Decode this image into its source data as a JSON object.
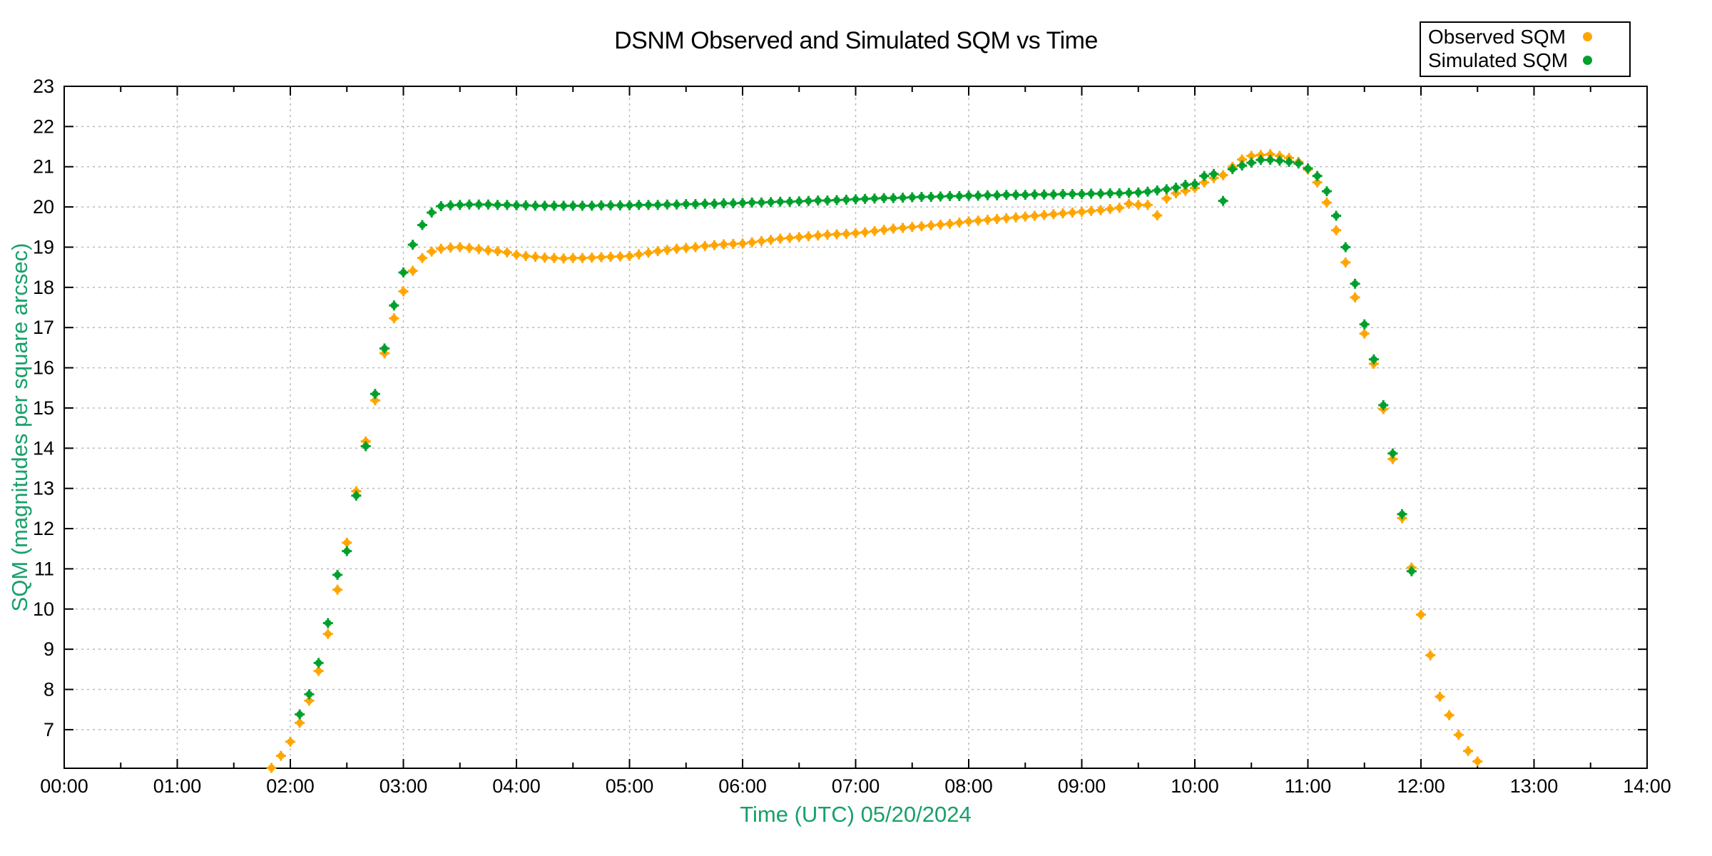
{
  "chart_data": {
    "type": "scatter",
    "title": "DSNM Observed and Simulated SQM vs Time",
    "xlabel": "Time (UTC)   05/20/2024",
    "ylabel": "SQM (magnitudes per square arcsec)",
    "xlim": [
      0,
      14
    ],
    "ylim": [
      6.04,
      23
    ],
    "grid": true,
    "legend_position": "top-right",
    "axis_color": "#000000",
    "label_color": "#18A06A",
    "grid_color": "#BBBBBB",
    "background_color": "#FFFFFF",
    "x_minor_tick_step": 0.5,
    "x_ticks": [
      {
        "v": 0,
        "label": "00:00"
      },
      {
        "v": 1,
        "label": "01:00"
      },
      {
        "v": 2,
        "label": "02:00"
      },
      {
        "v": 3,
        "label": "03:00"
      },
      {
        "v": 4,
        "label": "04:00"
      },
      {
        "v": 5,
        "label": "05:00"
      },
      {
        "v": 6,
        "label": "06:00"
      },
      {
        "v": 7,
        "label": "07:00"
      },
      {
        "v": 8,
        "label": "08:00"
      },
      {
        "v": 9,
        "label": "09:00"
      },
      {
        "v": 10,
        "label": "10:00"
      },
      {
        "v": 11,
        "label": "11:00"
      },
      {
        "v": 12,
        "label": "12:00"
      },
      {
        "v": 13,
        "label": "13:00"
      },
      {
        "v": 14,
        "label": "14:00"
      }
    ],
    "y_ticks": [
      7,
      8,
      9,
      10,
      11,
      12,
      13,
      14,
      15,
      16,
      17,
      18,
      19,
      20,
      21,
      22,
      23
    ],
    "series": [
      {
        "name": "Observed SQM",
        "color": "#FFA500",
        "marker": "filled-dot",
        "points": [
          [
            1.833,
            6.05
          ],
          [
            1.917,
            6.35
          ],
          [
            2.0,
            6.7
          ],
          [
            2.083,
            7.17
          ],
          [
            2.167,
            7.72
          ],
          [
            2.25,
            8.46
          ],
          [
            2.333,
            9.38
          ],
          [
            2.417,
            10.48
          ],
          [
            2.5,
            11.65
          ],
          [
            2.583,
            12.93
          ],
          [
            2.667,
            14.17
          ],
          [
            2.75,
            15.19
          ],
          [
            2.833,
            16.36
          ],
          [
            2.917,
            17.23
          ],
          [
            3.0,
            17.9
          ],
          [
            3.083,
            18.41
          ],
          [
            3.167,
            18.73
          ],
          [
            3.25,
            18.89
          ],
          [
            3.333,
            18.96
          ],
          [
            3.417,
            18.99
          ],
          [
            3.5,
            19.0
          ],
          [
            3.583,
            18.98
          ],
          [
            3.667,
            18.95
          ],
          [
            3.75,
            18.92
          ],
          [
            3.833,
            18.9
          ],
          [
            3.917,
            18.87
          ],
          [
            4.0,
            18.81
          ],
          [
            4.083,
            18.78
          ],
          [
            4.167,
            18.76
          ],
          [
            4.25,
            18.74
          ],
          [
            4.333,
            18.73
          ],
          [
            4.417,
            18.72
          ],
          [
            4.5,
            18.73
          ],
          [
            4.583,
            18.73
          ],
          [
            4.667,
            18.74
          ],
          [
            4.75,
            18.75
          ],
          [
            4.833,
            18.76
          ],
          [
            4.917,
            18.77
          ],
          [
            5.0,
            18.78
          ],
          [
            5.083,
            18.82
          ],
          [
            5.167,
            18.86
          ],
          [
            5.25,
            18.9
          ],
          [
            5.333,
            18.93
          ],
          [
            5.417,
            18.96
          ],
          [
            5.5,
            18.98
          ],
          [
            5.583,
            19.0
          ],
          [
            5.667,
            19.03
          ],
          [
            5.75,
            19.05
          ],
          [
            5.833,
            19.07
          ],
          [
            5.917,
            19.08
          ],
          [
            6.0,
            19.09
          ],
          [
            6.083,
            19.12
          ],
          [
            6.167,
            19.15
          ],
          [
            6.25,
            19.18
          ],
          [
            6.333,
            19.21
          ],
          [
            6.417,
            19.23
          ],
          [
            6.5,
            19.25
          ],
          [
            6.583,
            19.27
          ],
          [
            6.667,
            19.29
          ],
          [
            6.75,
            19.31
          ],
          [
            6.833,
            19.32
          ],
          [
            6.917,
            19.33
          ],
          [
            7.0,
            19.35
          ],
          [
            7.083,
            19.37
          ],
          [
            7.167,
            19.4
          ],
          [
            7.25,
            19.43
          ],
          [
            7.333,
            19.46
          ],
          [
            7.417,
            19.48
          ],
          [
            7.5,
            19.5
          ],
          [
            7.583,
            19.52
          ],
          [
            7.667,
            19.54
          ],
          [
            7.75,
            19.56
          ],
          [
            7.833,
            19.58
          ],
          [
            7.917,
            19.61
          ],
          [
            8.0,
            19.64
          ],
          [
            8.083,
            19.66
          ],
          [
            8.167,
            19.68
          ],
          [
            8.25,
            19.7
          ],
          [
            8.333,
            19.72
          ],
          [
            8.417,
            19.74
          ],
          [
            8.5,
            19.76
          ],
          [
            8.583,
            19.78
          ],
          [
            8.667,
            19.8
          ],
          [
            8.75,
            19.82
          ],
          [
            8.833,
            19.84
          ],
          [
            8.917,
            19.86
          ],
          [
            9.0,
            19.88
          ],
          [
            9.083,
            19.9
          ],
          [
            9.167,
            19.92
          ],
          [
            9.25,
            19.95
          ],
          [
            9.333,
            19.98
          ],
          [
            9.417,
            20.08
          ],
          [
            9.5,
            20.05
          ],
          [
            9.583,
            20.05
          ],
          [
            9.667,
            19.79
          ],
          [
            9.75,
            20.21
          ],
          [
            9.833,
            20.34
          ],
          [
            9.917,
            20.4
          ],
          [
            10.0,
            20.47
          ],
          [
            10.083,
            20.61
          ],
          [
            10.167,
            20.72
          ],
          [
            10.25,
            20.79
          ],
          [
            10.333,
            21.0
          ],
          [
            10.417,
            21.18
          ],
          [
            10.5,
            21.27
          ],
          [
            10.583,
            21.29
          ],
          [
            10.667,
            21.31
          ],
          [
            10.75,
            21.27
          ],
          [
            10.833,
            21.22
          ],
          [
            10.917,
            21.12
          ],
          [
            11.0,
            20.93
          ],
          [
            11.083,
            20.61
          ],
          [
            11.167,
            20.11
          ],
          [
            11.25,
            19.42
          ],
          [
            11.333,
            18.62
          ],
          [
            11.417,
            17.75
          ],
          [
            11.5,
            16.85
          ],
          [
            11.583,
            16.1
          ],
          [
            11.667,
            14.97
          ],
          [
            11.75,
            13.73
          ],
          [
            11.833,
            12.26
          ],
          [
            11.917,
            11.03
          ],
          [
            12.0,
            9.86
          ],
          [
            12.083,
            8.85
          ],
          [
            12.167,
            7.82
          ],
          [
            12.25,
            7.36
          ],
          [
            12.333,
            6.87
          ],
          [
            12.417,
            6.47
          ],
          [
            12.5,
            6.21
          ]
        ]
      },
      {
        "name": "Simulated SQM",
        "color": "#00A02D",
        "marker": "filled-dot",
        "points": [
          [
            2.083,
            7.38
          ],
          [
            2.167,
            7.88
          ],
          [
            2.25,
            8.66
          ],
          [
            2.333,
            9.65
          ],
          [
            2.417,
            10.85
          ],
          [
            2.5,
            11.44
          ],
          [
            2.583,
            12.82
          ],
          [
            2.667,
            14.05
          ],
          [
            2.75,
            15.35
          ],
          [
            2.833,
            16.48
          ],
          [
            2.917,
            17.55
          ],
          [
            3.0,
            18.37
          ],
          [
            3.083,
            19.06
          ],
          [
            3.167,
            19.55
          ],
          [
            3.25,
            19.86
          ],
          [
            3.333,
            20.02
          ],
          [
            3.417,
            20.04
          ],
          [
            3.5,
            20.05
          ],
          [
            3.583,
            20.06
          ],
          [
            3.667,
            20.06
          ],
          [
            3.75,
            20.06
          ],
          [
            3.833,
            20.05
          ],
          [
            3.917,
            20.05
          ],
          [
            4.0,
            20.04
          ],
          [
            4.083,
            20.04
          ],
          [
            4.167,
            20.03
          ],
          [
            4.25,
            20.03
          ],
          [
            4.333,
            20.03
          ],
          [
            4.417,
            20.03
          ],
          [
            4.5,
            20.03
          ],
          [
            4.583,
            20.03
          ],
          [
            4.667,
            20.03
          ],
          [
            4.75,
            20.04
          ],
          [
            4.833,
            20.04
          ],
          [
            4.917,
            20.04
          ],
          [
            5.0,
            20.04
          ],
          [
            5.083,
            20.05
          ],
          [
            5.167,
            20.05
          ],
          [
            5.25,
            20.05
          ],
          [
            5.333,
            20.06
          ],
          [
            5.417,
            20.06
          ],
          [
            5.5,
            20.07
          ],
          [
            5.583,
            20.07
          ],
          [
            5.667,
            20.08
          ],
          [
            5.75,
            20.08
          ],
          [
            5.833,
            20.09
          ],
          [
            5.917,
            20.09
          ],
          [
            6.0,
            20.1
          ],
          [
            6.083,
            20.11
          ],
          [
            6.167,
            20.11
          ],
          [
            6.25,
            20.12
          ],
          [
            6.333,
            20.13
          ],
          [
            6.417,
            20.13
          ],
          [
            6.5,
            20.14
          ],
          [
            6.583,
            20.15
          ],
          [
            6.667,
            20.16
          ],
          [
            6.75,
            20.16
          ],
          [
            6.833,
            20.17
          ],
          [
            6.917,
            20.18
          ],
          [
            7.0,
            20.19
          ],
          [
            7.083,
            20.2
          ],
          [
            7.167,
            20.21
          ],
          [
            7.25,
            20.22
          ],
          [
            7.333,
            20.22
          ],
          [
            7.417,
            20.23
          ],
          [
            7.5,
            20.24
          ],
          [
            7.583,
            20.25
          ],
          [
            7.667,
            20.25
          ],
          [
            7.75,
            20.26
          ],
          [
            7.833,
            20.27
          ],
          [
            7.917,
            20.27
          ],
          [
            8.0,
            20.28
          ],
          [
            8.083,
            20.28
          ],
          [
            8.167,
            20.29
          ],
          [
            8.25,
            20.29
          ],
          [
            8.333,
            20.3
          ],
          [
            8.417,
            20.3
          ],
          [
            8.5,
            20.3
          ],
          [
            8.583,
            20.31
          ],
          [
            8.667,
            20.31
          ],
          [
            8.75,
            20.31
          ],
          [
            8.833,
            20.32
          ],
          [
            8.917,
            20.32
          ],
          [
            9.0,
            20.32
          ],
          [
            9.083,
            20.33
          ],
          [
            9.167,
            20.33
          ],
          [
            9.25,
            20.34
          ],
          [
            9.333,
            20.34
          ],
          [
            9.417,
            20.35
          ],
          [
            9.5,
            20.36
          ],
          [
            9.583,
            20.38
          ],
          [
            9.667,
            20.41
          ],
          [
            9.75,
            20.44
          ],
          [
            9.833,
            20.48
          ],
          [
            9.917,
            20.55
          ],
          [
            10.0,
            20.57
          ],
          [
            10.083,
            20.77
          ],
          [
            10.167,
            20.82
          ],
          [
            10.25,
            20.15
          ],
          [
            10.333,
            20.94
          ],
          [
            10.417,
            21.03
          ],
          [
            10.5,
            21.1
          ],
          [
            10.583,
            21.17
          ],
          [
            10.667,
            21.17
          ],
          [
            10.75,
            21.15
          ],
          [
            10.833,
            21.12
          ],
          [
            10.917,
            21.08
          ],
          [
            11.0,
            20.96
          ],
          [
            11.083,
            20.77
          ],
          [
            11.167,
            20.39
          ],
          [
            11.25,
            19.78
          ],
          [
            11.333,
            19.0
          ],
          [
            11.417,
            18.09
          ],
          [
            11.5,
            17.08
          ],
          [
            11.583,
            16.21
          ],
          [
            11.667,
            15.07
          ],
          [
            11.75,
            13.87
          ],
          [
            11.833,
            12.36
          ],
          [
            11.917,
            10.94
          ]
        ]
      }
    ]
  },
  "legend": {
    "items": [
      {
        "label": "Observed SQM"
      },
      {
        "label": "Simulated SQM"
      }
    ]
  }
}
